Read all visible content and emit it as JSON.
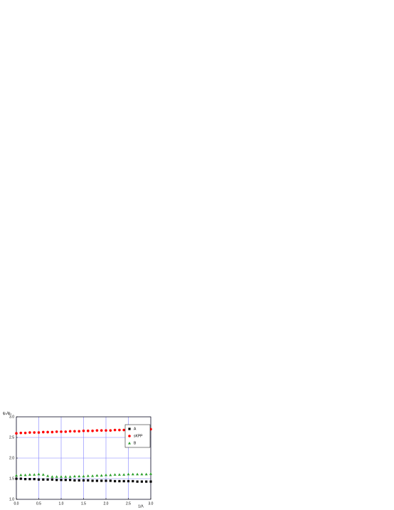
{
  "chart_data": {
    "type": "scatter",
    "y_label": "ψ₂/ψ₁",
    "x_label": "1/Λ",
    "x": [
      0,
      0.1,
      0.2,
      0.3,
      0.4,
      0.5,
      0.6,
      0.7,
      0.8,
      0.9,
      1.0,
      1.1,
      1.2,
      1.3,
      1.4,
      1.5,
      1.6,
      1.7,
      1.8,
      1.9,
      2.0,
      2.1,
      2.2,
      2.3,
      2.4,
      2.5,
      2.6,
      2.7,
      2.8,
      2.9,
      3.0
    ],
    "series": [
      {
        "name": "A",
        "color": "#000000",
        "marker": "square",
        "values": [
          1.5,
          1.5,
          1.49,
          1.49,
          1.49,
          1.48,
          1.48,
          1.48,
          1.48,
          1.47,
          1.47,
          1.47,
          1.47,
          1.46,
          1.46,
          1.46,
          1.46,
          1.45,
          1.45,
          1.45,
          1.45,
          1.45,
          1.44,
          1.44,
          1.44,
          1.44,
          1.44,
          1.43,
          1.43,
          1.43,
          1.43
        ]
      },
      {
        "name": "sKPP",
        "color": "#ff0000",
        "marker": "circle",
        "values": [
          2.6,
          2.61,
          2.61,
          2.62,
          2.62,
          2.62,
          2.63,
          2.63,
          2.63,
          2.64,
          2.64,
          2.64,
          2.65,
          2.65,
          2.65,
          2.66,
          2.66,
          2.66,
          2.67,
          2.67,
          2.67,
          2.67,
          2.68,
          2.68,
          2.68,
          2.68,
          2.69,
          2.69,
          2.69,
          2.69,
          2.7
        ]
      },
      {
        "name": "B",
        "color": "#2ca02c",
        "marker": "triangle",
        "values": [
          1.58,
          1.59,
          1.59,
          1.6,
          1.6,
          1.61,
          1.6,
          1.57,
          1.55,
          1.55,
          1.55,
          1.55,
          1.55,
          1.56,
          1.56,
          1.56,
          1.57,
          1.57,
          1.58,
          1.58,
          1.59,
          1.59,
          1.6,
          1.6,
          1.6,
          1.61,
          1.61,
          1.61,
          1.61,
          1.61,
          1.62
        ]
      }
    ],
    "xlim": [
      0,
      3
    ],
    "ylim": [
      1,
      3
    ],
    "xticks": [
      {
        "value": 0,
        "label": "0.0"
      },
      0.5,
      {
        "value": 1,
        "label": "1.0"
      },
      1.5,
      {
        "value": 2,
        "label": "2.0"
      },
      2.5,
      {
        "value": 3,
        "label": "3.0"
      }
    ],
    "yticks": [
      {
        "value": 1,
        "label": "1.0"
      },
      1.5,
      {
        "value": 2,
        "label": "2.0"
      },
      2.5,
      {
        "value": 3,
        "label": "3.0"
      }
    ],
    "grid": true,
    "grid_color": "#8080ff",
    "legend": "upper-right"
  }
}
